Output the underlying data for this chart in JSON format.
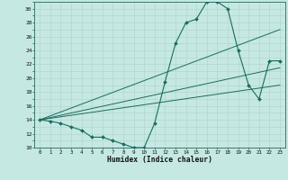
{
  "xlabel": "Humidex (Indice chaleur)",
  "bg_color": "#c5e8e2",
  "line_color": "#1a6b60",
  "grid_color": "#aed4cc",
  "xlim": [
    -0.5,
    23.5
  ],
  "ylim": [
    10,
    31
  ],
  "xticks": [
    0,
    1,
    2,
    3,
    4,
    5,
    6,
    7,
    8,
    9,
    10,
    11,
    12,
    13,
    14,
    15,
    16,
    17,
    18,
    19,
    20,
    21,
    22,
    23
  ],
  "yticks": [
    10,
    12,
    14,
    16,
    18,
    20,
    22,
    24,
    26,
    28,
    30
  ],
  "curve1_x": [
    0,
    1,
    2,
    3,
    4,
    5,
    6,
    7,
    8,
    9,
    10,
    11,
    12,
    13,
    14,
    15,
    16,
    17,
    18,
    19,
    20,
    21,
    22,
    23
  ],
  "curve1_y": [
    14,
    13.8,
    13.5,
    13.0,
    12.5,
    11.5,
    11.5,
    11.0,
    10.5,
    10.0,
    10.0,
    13.5,
    19.5,
    25.0,
    28.0,
    28.5,
    31.0,
    31.0,
    30.0,
    24.0,
    19.0,
    17.0,
    22.5,
    22.5
  ],
  "line1_x": [
    0,
    23
  ],
  "line1_y": [
    14,
    19.0
  ],
  "line2_x": [
    0,
    23
  ],
  "line2_y": [
    14,
    21.5
  ],
  "line3_x": [
    0,
    23
  ],
  "line3_y": [
    14,
    27.0
  ]
}
